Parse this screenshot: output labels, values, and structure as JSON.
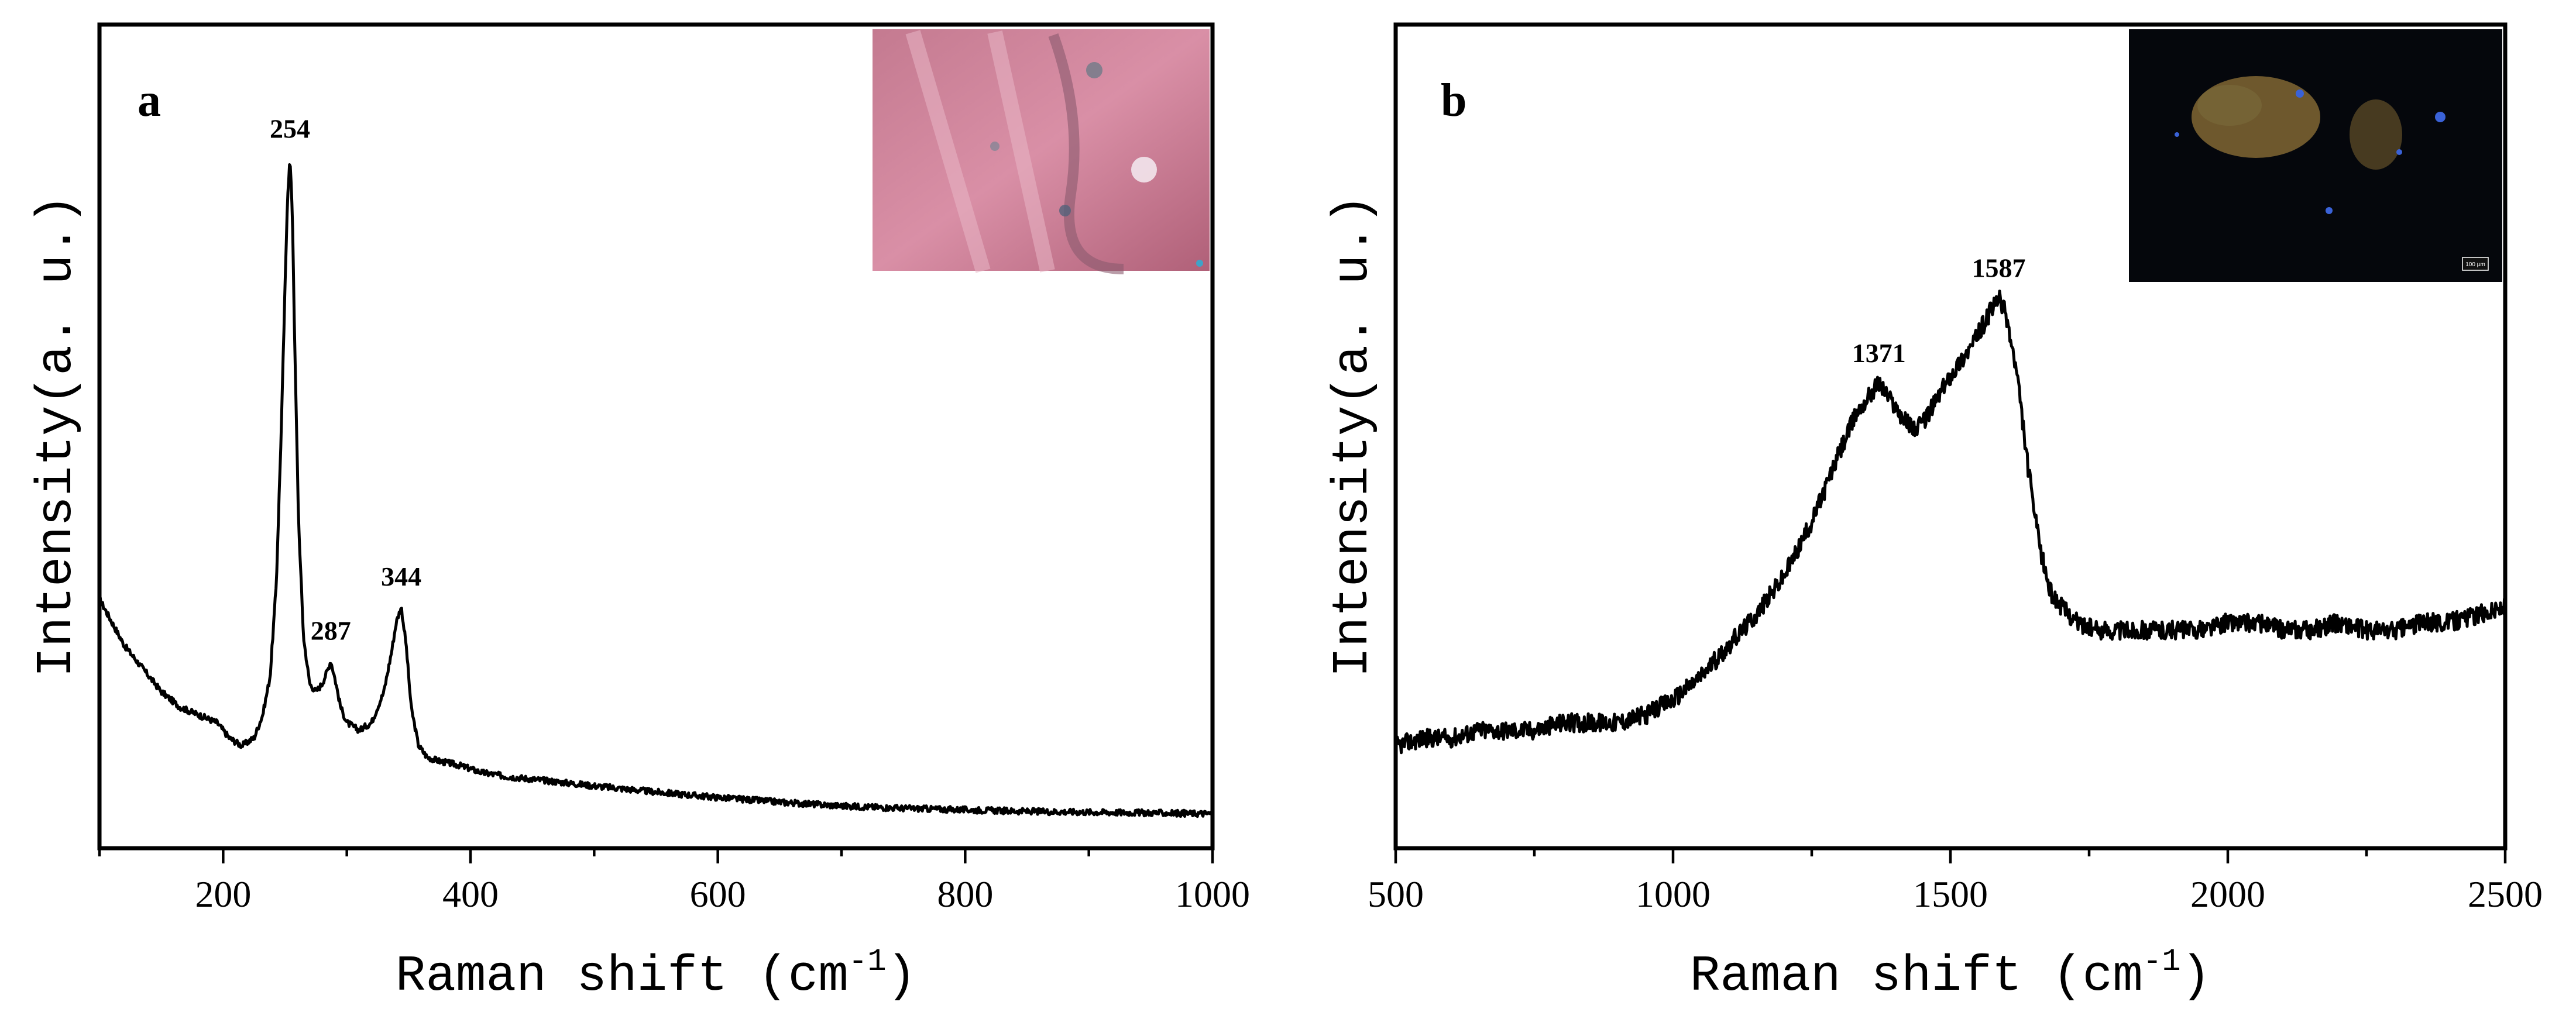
{
  "colors": {
    "line": "#000000",
    "background": "#ffffff",
    "inset_a_base": "#c47a90",
    "inset_b_base": "#05070c",
    "inset_b_orange": "#c49a48",
    "inset_b_blue": "#3a62d8"
  },
  "chart_data": [
    {
      "panel": "a",
      "type": "line",
      "xlabel": "Raman shift (cm",
      "xlabel_sup": "-1",
      "xlabel_close": ")",
      "ylabel": "Intensity(a. u.)",
      "xlim": [
        100,
        1000
      ],
      "ylim": [
        0,
        1
      ],
      "xticks": [
        200,
        400,
        600,
        800,
        1000
      ],
      "xtick_labels": [
        "200",
        "400",
        "600",
        "800",
        "1000"
      ],
      "y_ticks_shown": false,
      "grid": false,
      "legend": "none",
      "peaks": [
        {
          "x": 254,
          "y": 0.87,
          "label": "254"
        },
        {
          "x": 287,
          "y": 0.22,
          "label": "287"
        },
        {
          "x": 344,
          "y": 0.29,
          "label": "344"
        }
      ],
      "inset": "optical-micrograph-pink",
      "series": [
        {
          "name": "spectrum-a",
          "x": [
            100,
            110,
            120,
            135,
            150,
            165,
            180,
            195,
            205,
            215,
            225,
            232,
            238,
            243,
            247,
            250,
            252,
            254,
            256,
            258,
            261,
            265,
            270,
            275,
            280,
            285,
            287,
            290,
            295,
            300,
            310,
            320,
            330,
            336,
            340,
            344,
            348,
            352,
            358,
            365,
            375,
            390,
            410,
            430,
            460,
            500,
            550,
            600,
            650,
            700,
            750,
            800,
            850,
            900,
            950,
            1000
          ],
          "y": [
            0.3,
            0.27,
            0.24,
            0.21,
            0.18,
            0.16,
            0.15,
            0.14,
            0.12,
            0.11,
            0.12,
            0.15,
            0.2,
            0.32,
            0.52,
            0.7,
            0.82,
            0.87,
            0.8,
            0.62,
            0.4,
            0.25,
            0.19,
            0.18,
            0.19,
            0.21,
            0.22,
            0.2,
            0.16,
            0.14,
            0.13,
            0.14,
            0.18,
            0.23,
            0.27,
            0.29,
            0.24,
            0.16,
            0.11,
            0.095,
            0.09,
            0.085,
            0.075,
            0.07,
            0.065,
            0.058,
            0.05,
            0.043,
            0.037,
            0.032,
            0.029,
            0.027,
            0.025,
            0.024,
            0.023,
            0.022
          ]
        }
      ]
    },
    {
      "panel": "b",
      "type": "line",
      "xlabel": "Raman shift (cm",
      "xlabel_sup": "-1",
      "xlabel_close": ")",
      "ylabel": "Intensity(a. u.)",
      "xlim": [
        500,
        2500
      ],
      "ylim": [
        0,
        1
      ],
      "xticks": [
        500,
        1000,
        1500,
        2000,
        2500
      ],
      "xtick_labels": [
        "500",
        "1000",
        "1500",
        "2000",
        "2500"
      ],
      "y_ticks_shown": false,
      "grid": false,
      "legend": "none",
      "peaks": [
        {
          "x": 1371,
          "y": 0.61,
          "label": "1371"
        },
        {
          "x": 1587,
          "y": 0.72,
          "label": "1587"
        }
      ],
      "inset": "dark-field-micrograph",
      "inset_scale_label": "100 µm",
      "series": [
        {
          "name": "spectrum-b",
          "x": [
            500,
            550,
            600,
            650,
            700,
            750,
            800,
            850,
            900,
            950,
            1000,
            1050,
            1100,
            1150,
            1200,
            1250,
            1300,
            1330,
            1360,
            1371,
            1390,
            1420,
            1440,
            1460,
            1500,
            1540,
            1570,
            1587,
            1600,
            1620,
            1640,
            1660,
            1680,
            1700,
            1730,
            1760,
            1800,
            1850,
            1900,
            1950,
            2000,
            2050,
            2100,
            2150,
            2200,
            2250,
            2300,
            2350,
            2400,
            2450,
            2500
          ],
          "y": [
            0.14,
            0.15,
            0.15,
            0.16,
            0.16,
            0.16,
            0.17,
            0.17,
            0.17,
            0.18,
            0.2,
            0.23,
            0.27,
            0.31,
            0.36,
            0.43,
            0.52,
            0.57,
            0.6,
            0.61,
            0.59,
            0.56,
            0.55,
            0.57,
            0.62,
            0.66,
            0.7,
            0.72,
            0.7,
            0.62,
            0.5,
            0.4,
            0.34,
            0.32,
            0.3,
            0.29,
            0.29,
            0.29,
            0.29,
            0.29,
            0.3,
            0.3,
            0.29,
            0.29,
            0.3,
            0.29,
            0.29,
            0.3,
            0.3,
            0.31,
            0.32
          ]
        }
      ]
    }
  ]
}
